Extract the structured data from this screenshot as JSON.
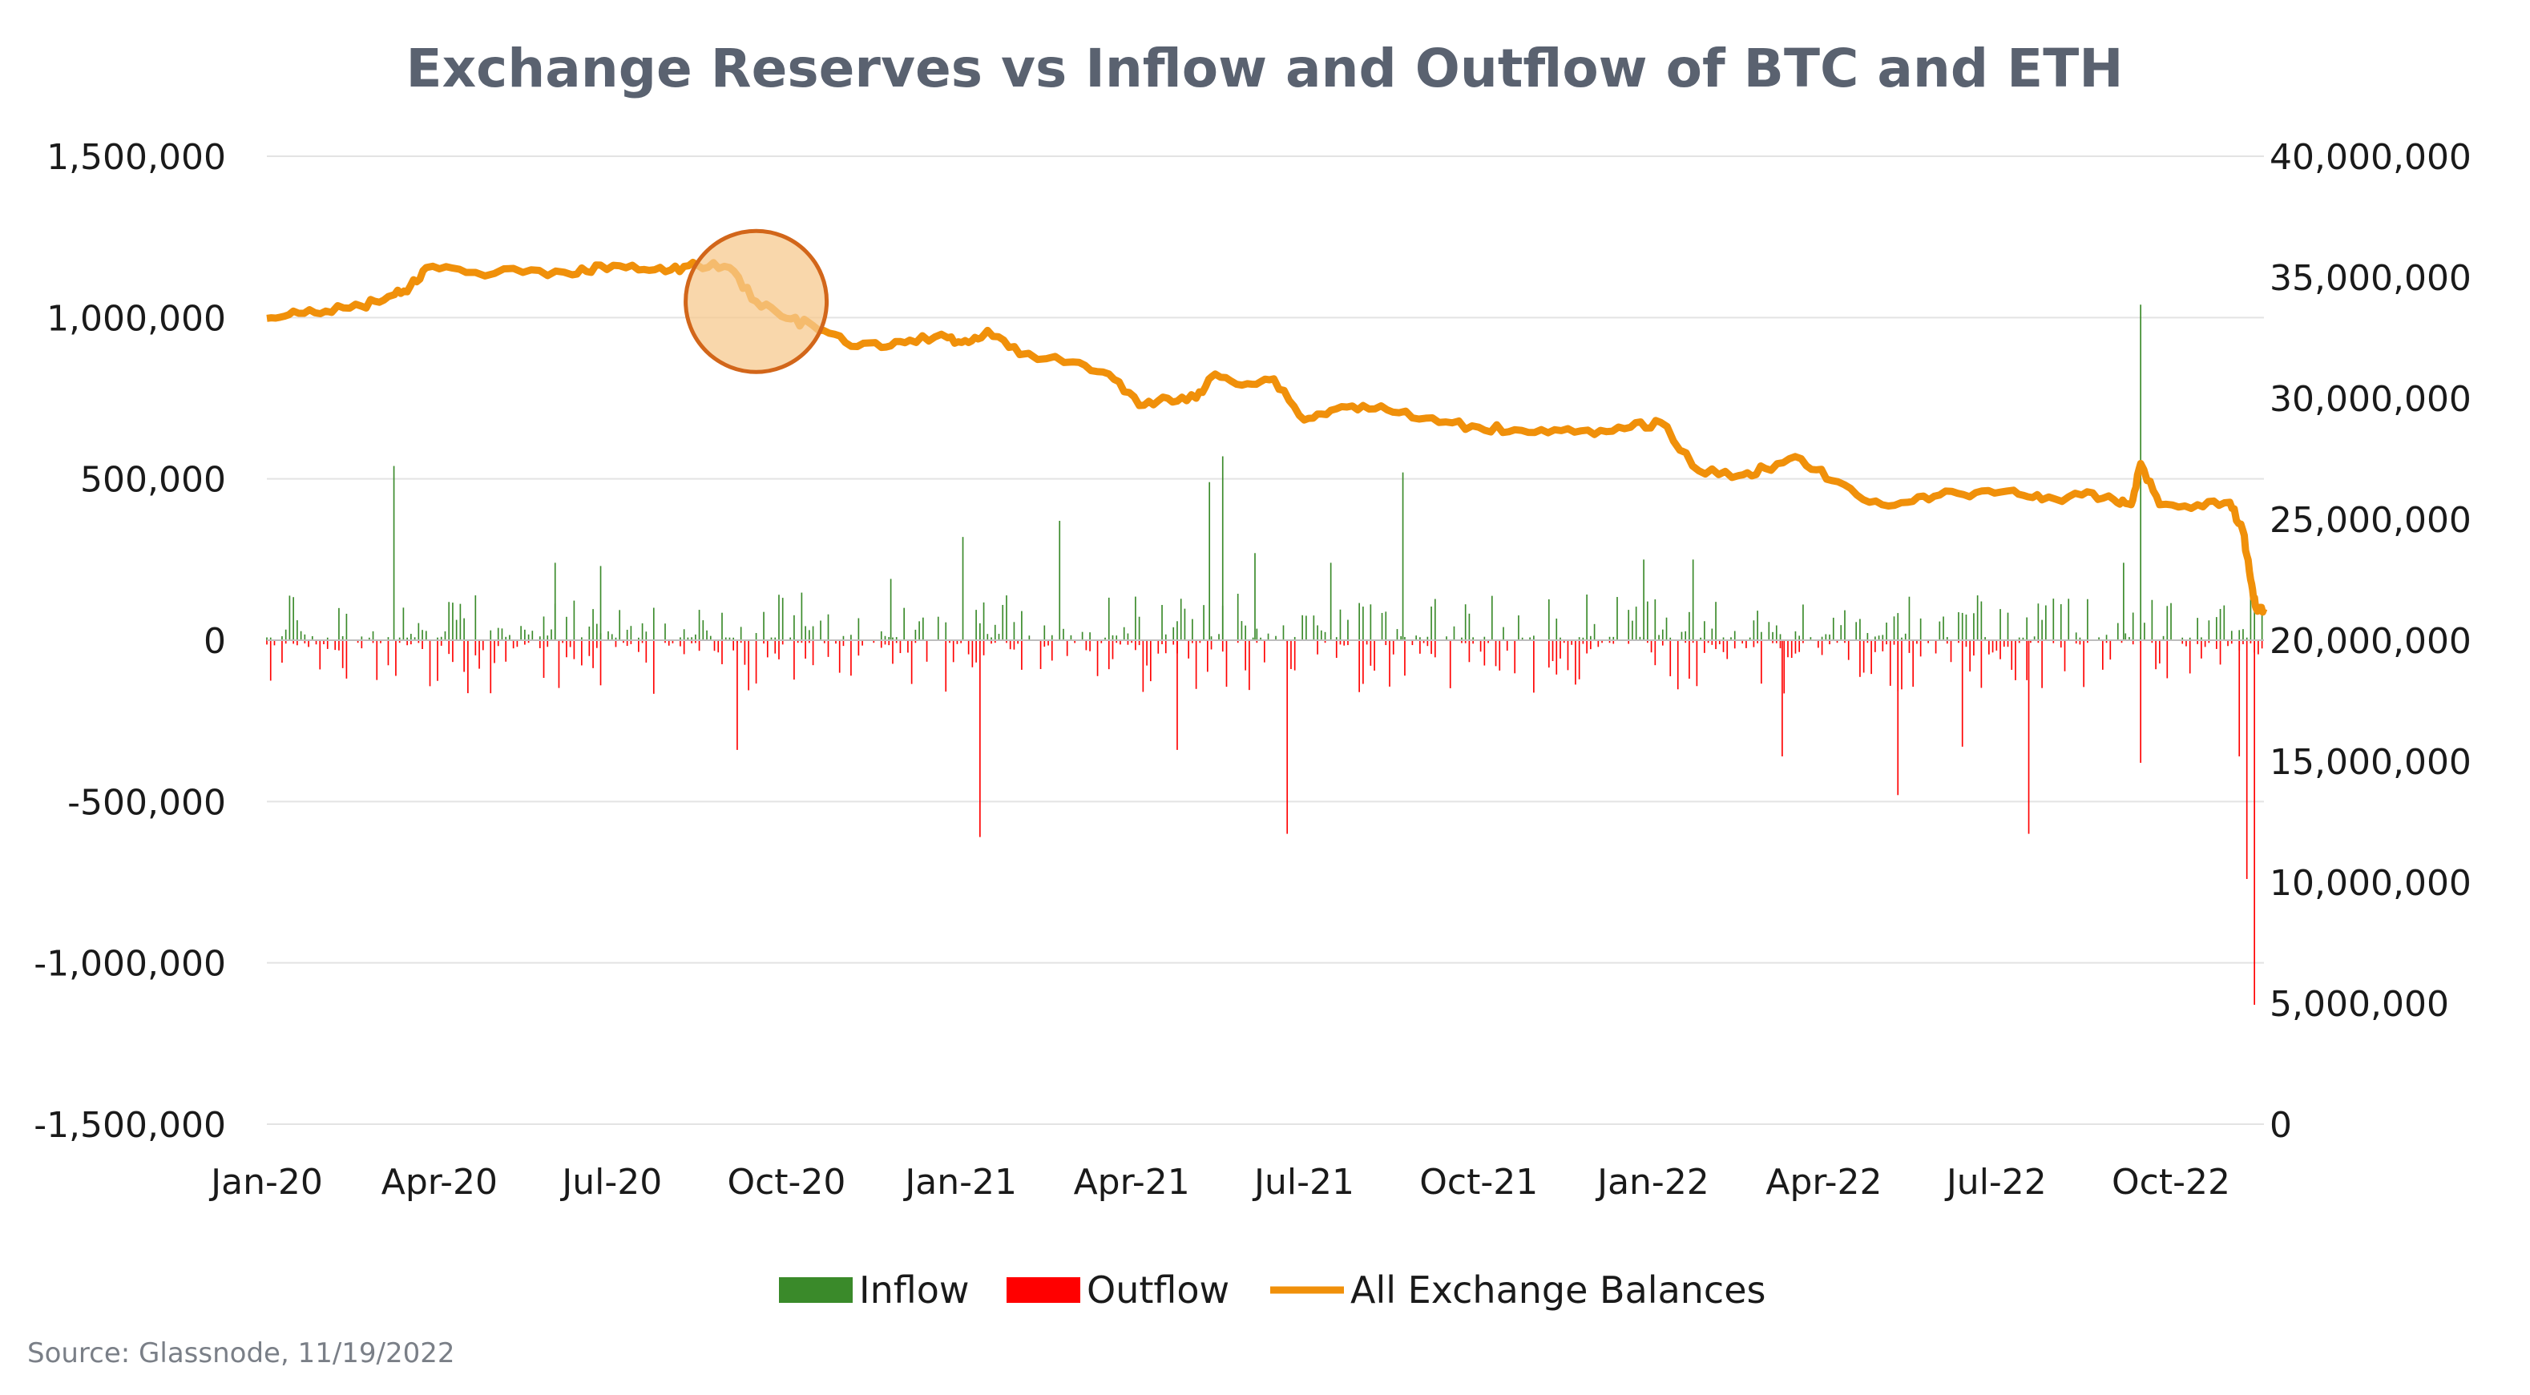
{
  "chart_data": {
    "type": "bar+line",
    "title": "Exchange Reserves vs Inflow and Outflow of BTC and ETH",
    "source": "Source: Glassnode, 11/19/2022",
    "x_range": [
      "2020-01-01",
      "2022-11-19"
    ],
    "x_ticks": [
      "Jan-20",
      "Apr-20",
      "Jul-20",
      "Oct-20",
      "Jan-21",
      "Apr-21",
      "Jul-21",
      "Oct-21",
      "Jan-22",
      "Apr-22",
      "Jul-22",
      "Oct-22"
    ],
    "y_left": {
      "min": -1500000,
      "max": 1500000,
      "ticks": [
        "1,500,000",
        "1,000,000",
        "500,000",
        "0",
        "-500,000",
        "-1,000,000",
        "-1,500,000"
      ]
    },
    "y_right": {
      "min": 0,
      "max": 40000000,
      "ticks": [
        "40,000,000",
        "35,000,000",
        "30,000,000",
        "25,000,000",
        "20,000,000",
        "15,000,000",
        "10,000,000",
        "5,000,000",
        "0"
      ]
    },
    "legend": {
      "position": "bottom",
      "items": [
        "Inflow",
        "Outflow",
        "All Exchange Balances"
      ]
    },
    "colors": {
      "inflow": "#3a8a2a",
      "outflow": "#ff0000",
      "balance": "#f0900a",
      "highlight_fill": "#f7c98f",
      "highlight_stroke": "#d2661a"
    },
    "highlight": {
      "date": "2020-09-15",
      "value": 34000000
    },
    "balance_series": {
      "name": "All Exchange Balances",
      "dates": [
        "2020-01-01",
        "2020-01-15",
        "2020-02-01",
        "2020-02-20",
        "2020-03-05",
        "2020-03-15",
        "2020-03-25",
        "2020-04-15",
        "2020-05-15",
        "2020-06-10",
        "2020-06-25",
        "2020-07-15",
        "2020-08-01",
        "2020-08-15",
        "2020-09-01",
        "2020-09-15",
        "2020-10-01",
        "2020-10-15",
        "2020-11-01",
        "2020-11-20",
        "2020-12-05",
        "2020-12-25",
        "2021-01-05",
        "2021-01-15",
        "2021-02-01",
        "2021-03-01",
        "2021-03-20",
        "2021-04-05",
        "2021-04-20",
        "2021-05-05",
        "2021-05-15",
        "2021-06-01",
        "2021-06-15",
        "2021-07-01",
        "2021-07-15",
        "2021-08-01",
        "2021-08-20",
        "2021-09-10",
        "2021-10-01",
        "2021-10-20",
        "2021-11-10",
        "2021-12-01",
        "2021-12-20",
        "2022-01-05",
        "2022-01-25",
        "2022-02-15",
        "2022-03-01",
        "2022-03-20",
        "2022-04-05",
        "2022-04-25",
        "2022-05-15",
        "2022-06-01",
        "2022-06-20",
        "2022-07-10",
        "2022-07-25",
        "2022-08-15",
        "2022-09-01",
        "2022-09-10",
        "2022-09-15",
        "2022-09-25",
        "2022-10-15",
        "2022-11-01",
        "2022-11-08",
        "2022-11-12",
        "2022-11-15",
        "2022-11-19"
      ],
      "values": [
        33300000,
        33600000,
        33600000,
        33800000,
        34200000,
        34400000,
        35400000,
        35200000,
        35200000,
        35100000,
        35500000,
        35300000,
        35300000,
        35500000,
        35400000,
        34000000,
        33300000,
        33000000,
        32300000,
        32100000,
        32400000,
        32500000,
        32300000,
        32800000,
        31800000,
        31500000,
        31000000,
        29700000,
        30000000,
        30000000,
        31000000,
        30600000,
        30800000,
        29100000,
        29500000,
        29700000,
        29400000,
        29000000,
        28800000,
        28700000,
        28700000,
        28500000,
        28800000,
        29000000,
        27000000,
        26800000,
        27100000,
        27500000,
        26600000,
        25700000,
        25700000,
        26000000,
        26100000,
        26200000,
        25800000,
        26000000,
        25800000,
        25600000,
        27300000,
        25600000,
        25600000,
        25700000,
        24500000,
        22500000,
        21300000,
        21300000
      ]
    },
    "flow_spikes": [
      {
        "date": "2020-03-08",
        "inflow": 540000,
        "outflow": 0
      },
      {
        "date": "2020-06-01",
        "inflow": 240000,
        "outflow": 0
      },
      {
        "date": "2020-06-25",
        "inflow": 230000,
        "outflow": 0
      },
      {
        "date": "2020-09-05",
        "inflow": 0,
        "outflow": -340000
      },
      {
        "date": "2020-11-25",
        "inflow": 190000,
        "outflow": 0
      },
      {
        "date": "2021-01-11",
        "inflow": 0,
        "outflow": -610000
      },
      {
        "date": "2021-01-02",
        "inflow": 320000,
        "outflow": 0
      },
      {
        "date": "2021-02-22",
        "inflow": 370000,
        "outflow": 0
      },
      {
        "date": "2021-04-25",
        "inflow": 0,
        "outflow": -340000
      },
      {
        "date": "2021-05-12",
        "inflow": 490000,
        "outflow": 0
      },
      {
        "date": "2021-05-19",
        "inflow": 570000,
        "outflow": 0
      },
      {
        "date": "2021-06-05",
        "inflow": 270000,
        "outflow": 0
      },
      {
        "date": "2021-06-22",
        "inflow": 0,
        "outflow": -600000
      },
      {
        "date": "2021-07-15",
        "inflow": 240000,
        "outflow": 0
      },
      {
        "date": "2021-08-22",
        "inflow": 520000,
        "outflow": 0
      },
      {
        "date": "2021-12-27",
        "inflow": 250000,
        "outflow": 0
      },
      {
        "date": "2022-01-22",
        "inflow": 250000,
        "outflow": 0
      },
      {
        "date": "2022-03-10",
        "inflow": 0,
        "outflow": -360000
      },
      {
        "date": "2022-05-10",
        "inflow": 0,
        "outflow": -480000
      },
      {
        "date": "2022-06-13",
        "inflow": 0,
        "outflow": -330000
      },
      {
        "date": "2022-07-18",
        "inflow": 0,
        "outflow": -600000
      },
      {
        "date": "2022-09-06",
        "inflow": 240000,
        "outflow": 0
      },
      {
        "date": "2022-09-15",
        "inflow": 1040000,
        "outflow": -380000
      },
      {
        "date": "2022-11-10",
        "inflow": 0,
        "outflow": -740000
      },
      {
        "date": "2022-11-14",
        "inflow": 0,
        "outflow": -1130000
      },
      {
        "date": "2022-11-06",
        "inflow": 0,
        "outflow": -360000
      }
    ]
  }
}
